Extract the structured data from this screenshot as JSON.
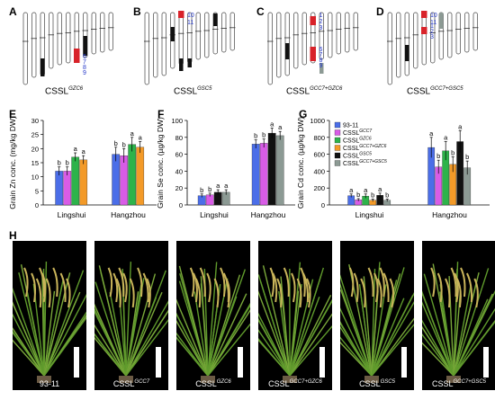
{
  "panels": {
    "A": "A",
    "B": "B",
    "C": "C",
    "D": "D",
    "E": "E",
    "F": "F",
    "G": "G",
    "H": "H"
  },
  "captions": {
    "A": {
      "base": "CSSL",
      "sup": "GZC6"
    },
    "B": {
      "base": "CSSL",
      "sup": "GSC5"
    },
    "C": {
      "base": "CSSL",
      "sup": "GCC7+GZC6"
    },
    "D": {
      "base": "CSSL",
      "sup": "GCC7+GSC5"
    }
  },
  "chrom_marks": {
    "A": [
      "6",
      "7",
      "8",
      "9"
    ],
    "B": [
      "10",
      "11"
    ],
    "C": [
      "1",
      "2",
      "3",
      "6",
      "7",
      "8",
      "9"
    ],
    "D": [
      "10",
      "11",
      "1",
      "2",
      "3"
    ]
  },
  "legend": [
    {
      "base": "93-11",
      "sup": "",
      "color": "#4b6ee8"
    },
    {
      "base": "CSSL",
      "sup": "GCC7",
      "color": "#d85ce6"
    },
    {
      "base": "CSSL",
      "sup": "GZC6",
      "color": "#2db34a"
    },
    {
      "base": "CSSL",
      "sup": "GCC7+GZC6",
      "color": "#f39a28"
    },
    {
      "base": "CSSL",
      "sup": "GSC5",
      "color": "#111111"
    },
    {
      "base": "CSSL",
      "sup": "GCC7+GSC5",
      "color": "#8c9a94"
    }
  ],
  "chart_data": [
    {
      "type": "bar",
      "ylabel": "Grain Zn conc. (mg/kg DW)",
      "ylim": [
        0,
        30
      ],
      "yticks": [
        0,
        5,
        10,
        15,
        20,
        25,
        30
      ],
      "categories": [
        "Lingshui",
        "Hangzhou"
      ],
      "series": [
        {
          "color": "#4b6ee8",
          "values": [
            12,
            18
          ],
          "err": [
            1.5,
            2.5
          ],
          "sig": [
            "b",
            "b"
          ]
        },
        {
          "color": "#d85ce6",
          "values": [
            12,
            17.5
          ],
          "err": [
            1.5,
            2.5
          ],
          "sig": [
            "b",
            "b"
          ]
        },
        {
          "color": "#2db34a",
          "values": [
            17,
            21.5
          ],
          "err": [
            1.5,
            2.5
          ],
          "sig": [
            "a",
            "a"
          ]
        },
        {
          "color": "#f39a28",
          "values": [
            16,
            20.5
          ],
          "err": [
            1.5,
            2
          ],
          "sig": [
            "a",
            "a"
          ]
        }
      ]
    },
    {
      "type": "bar",
      "ylabel": "Grain Se conc. (µg/kg DW)",
      "ylim": [
        0,
        100
      ],
      "yticks": [
        0,
        20,
        40,
        60,
        80,
        100
      ],
      "categories": [
        "Lingshui",
        "Hangzhou"
      ],
      "series": [
        {
          "color": "#4b6ee8",
          "values": [
            11,
            72
          ],
          "err": [
            2,
            5
          ],
          "sig": [
            "b",
            "b"
          ]
        },
        {
          "color": "#d85ce6",
          "values": [
            12,
            73
          ],
          "err": [
            2,
            5
          ],
          "sig": [
            "b",
            "b"
          ]
        },
        {
          "color": "#111111",
          "values": [
            15,
            85
          ],
          "err": [
            3,
            6
          ],
          "sig": [
            "a",
            "a"
          ]
        },
        {
          "color": "#8c9a94",
          "values": [
            15,
            82
          ],
          "err": [
            3,
            5
          ],
          "sig": [
            "a",
            "a"
          ]
        }
      ]
    },
    {
      "type": "bar",
      "ylabel": "Grain Cd conc. (µg/kg DW)",
      "ylim": [
        0,
        1000
      ],
      "yticks": [
        0,
        200,
        400,
        600,
        800,
        1000
      ],
      "categories": [
        "Lingshui",
        "Hangzhou"
      ],
      "series": [
        {
          "color": "#4b6ee8",
          "values": [
            110,
            680
          ],
          "err": [
            20,
            120
          ],
          "sig": [
            "a",
            "a"
          ]
        },
        {
          "color": "#d85ce6",
          "values": [
            60,
            450
          ],
          "err": [
            15,
            80
          ],
          "sig": [
            "b",
            "b"
          ]
        },
        {
          "color": "#2db34a",
          "values": [
            105,
            640
          ],
          "err": [
            25,
            110
          ],
          "sig": [
            "a",
            "a"
          ]
        },
        {
          "color": "#f39a28",
          "values": [
            55,
            480
          ],
          "err": [
            15,
            90
          ],
          "sig": [
            "b",
            "b"
          ]
        },
        {
          "color": "#111111",
          "values": [
            115,
            750
          ],
          "err": [
            25,
            130
          ],
          "sig": [
            "a",
            "a"
          ]
        },
        {
          "color": "#8c9a94",
          "values": [
            55,
            440
          ],
          "err": [
            15,
            80
          ],
          "sig": [
            "b",
            "b"
          ]
        }
      ]
    }
  ],
  "plants": [
    {
      "base": "93-11",
      "sup": ""
    },
    {
      "base": "CSSL",
      "sup": "GCC7"
    },
    {
      "base": "CSSL",
      "sup": "GZC6"
    },
    {
      "base": "CSSL",
      "sup": "GCC7+GZC6"
    },
    {
      "base": "CSSL",
      "sup": "GSC5"
    },
    {
      "base": "CSSL",
      "sup": "GCC7+GSC5"
    }
  ]
}
